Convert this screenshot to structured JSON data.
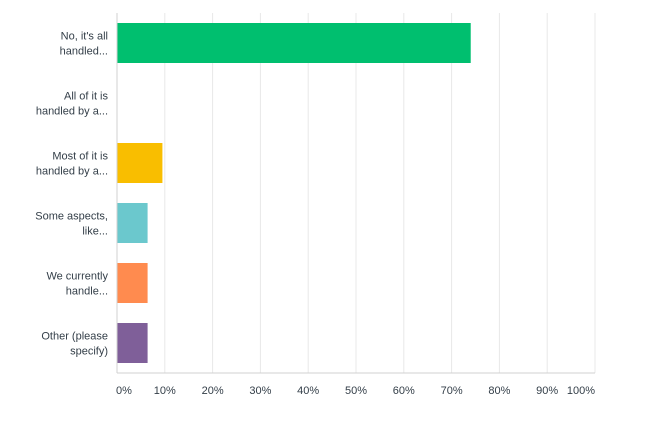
{
  "chart_data": {
    "type": "bar",
    "orientation": "horizontal",
    "categories": [
      [
        "No, it's all",
        "handled..."
      ],
      [
        "All of it is",
        "handled by a..."
      ],
      [
        "Most of it is",
        "handled by a..."
      ],
      [
        "Some aspects,",
        "like..."
      ],
      [
        "We currently",
        "handle..."
      ],
      [
        "Other (please",
        "specify)"
      ]
    ],
    "values": [
      74,
      0,
      9.5,
      6.4,
      6.4,
      6.4
    ],
    "colors": [
      "#00bf6f",
      "#507cb6",
      "#f9be00",
      "#6bc8cd",
      "#ff8b4f",
      "#7f5f99"
    ],
    "x_ticks": [
      "0%",
      "10%",
      "20%",
      "30%",
      "40%",
      "50%",
      "60%",
      "70%",
      "80%",
      "90%",
      "100%"
    ],
    "xlim": [
      0,
      100
    ],
    "unit": "%",
    "grid": true,
    "legend": "none"
  }
}
